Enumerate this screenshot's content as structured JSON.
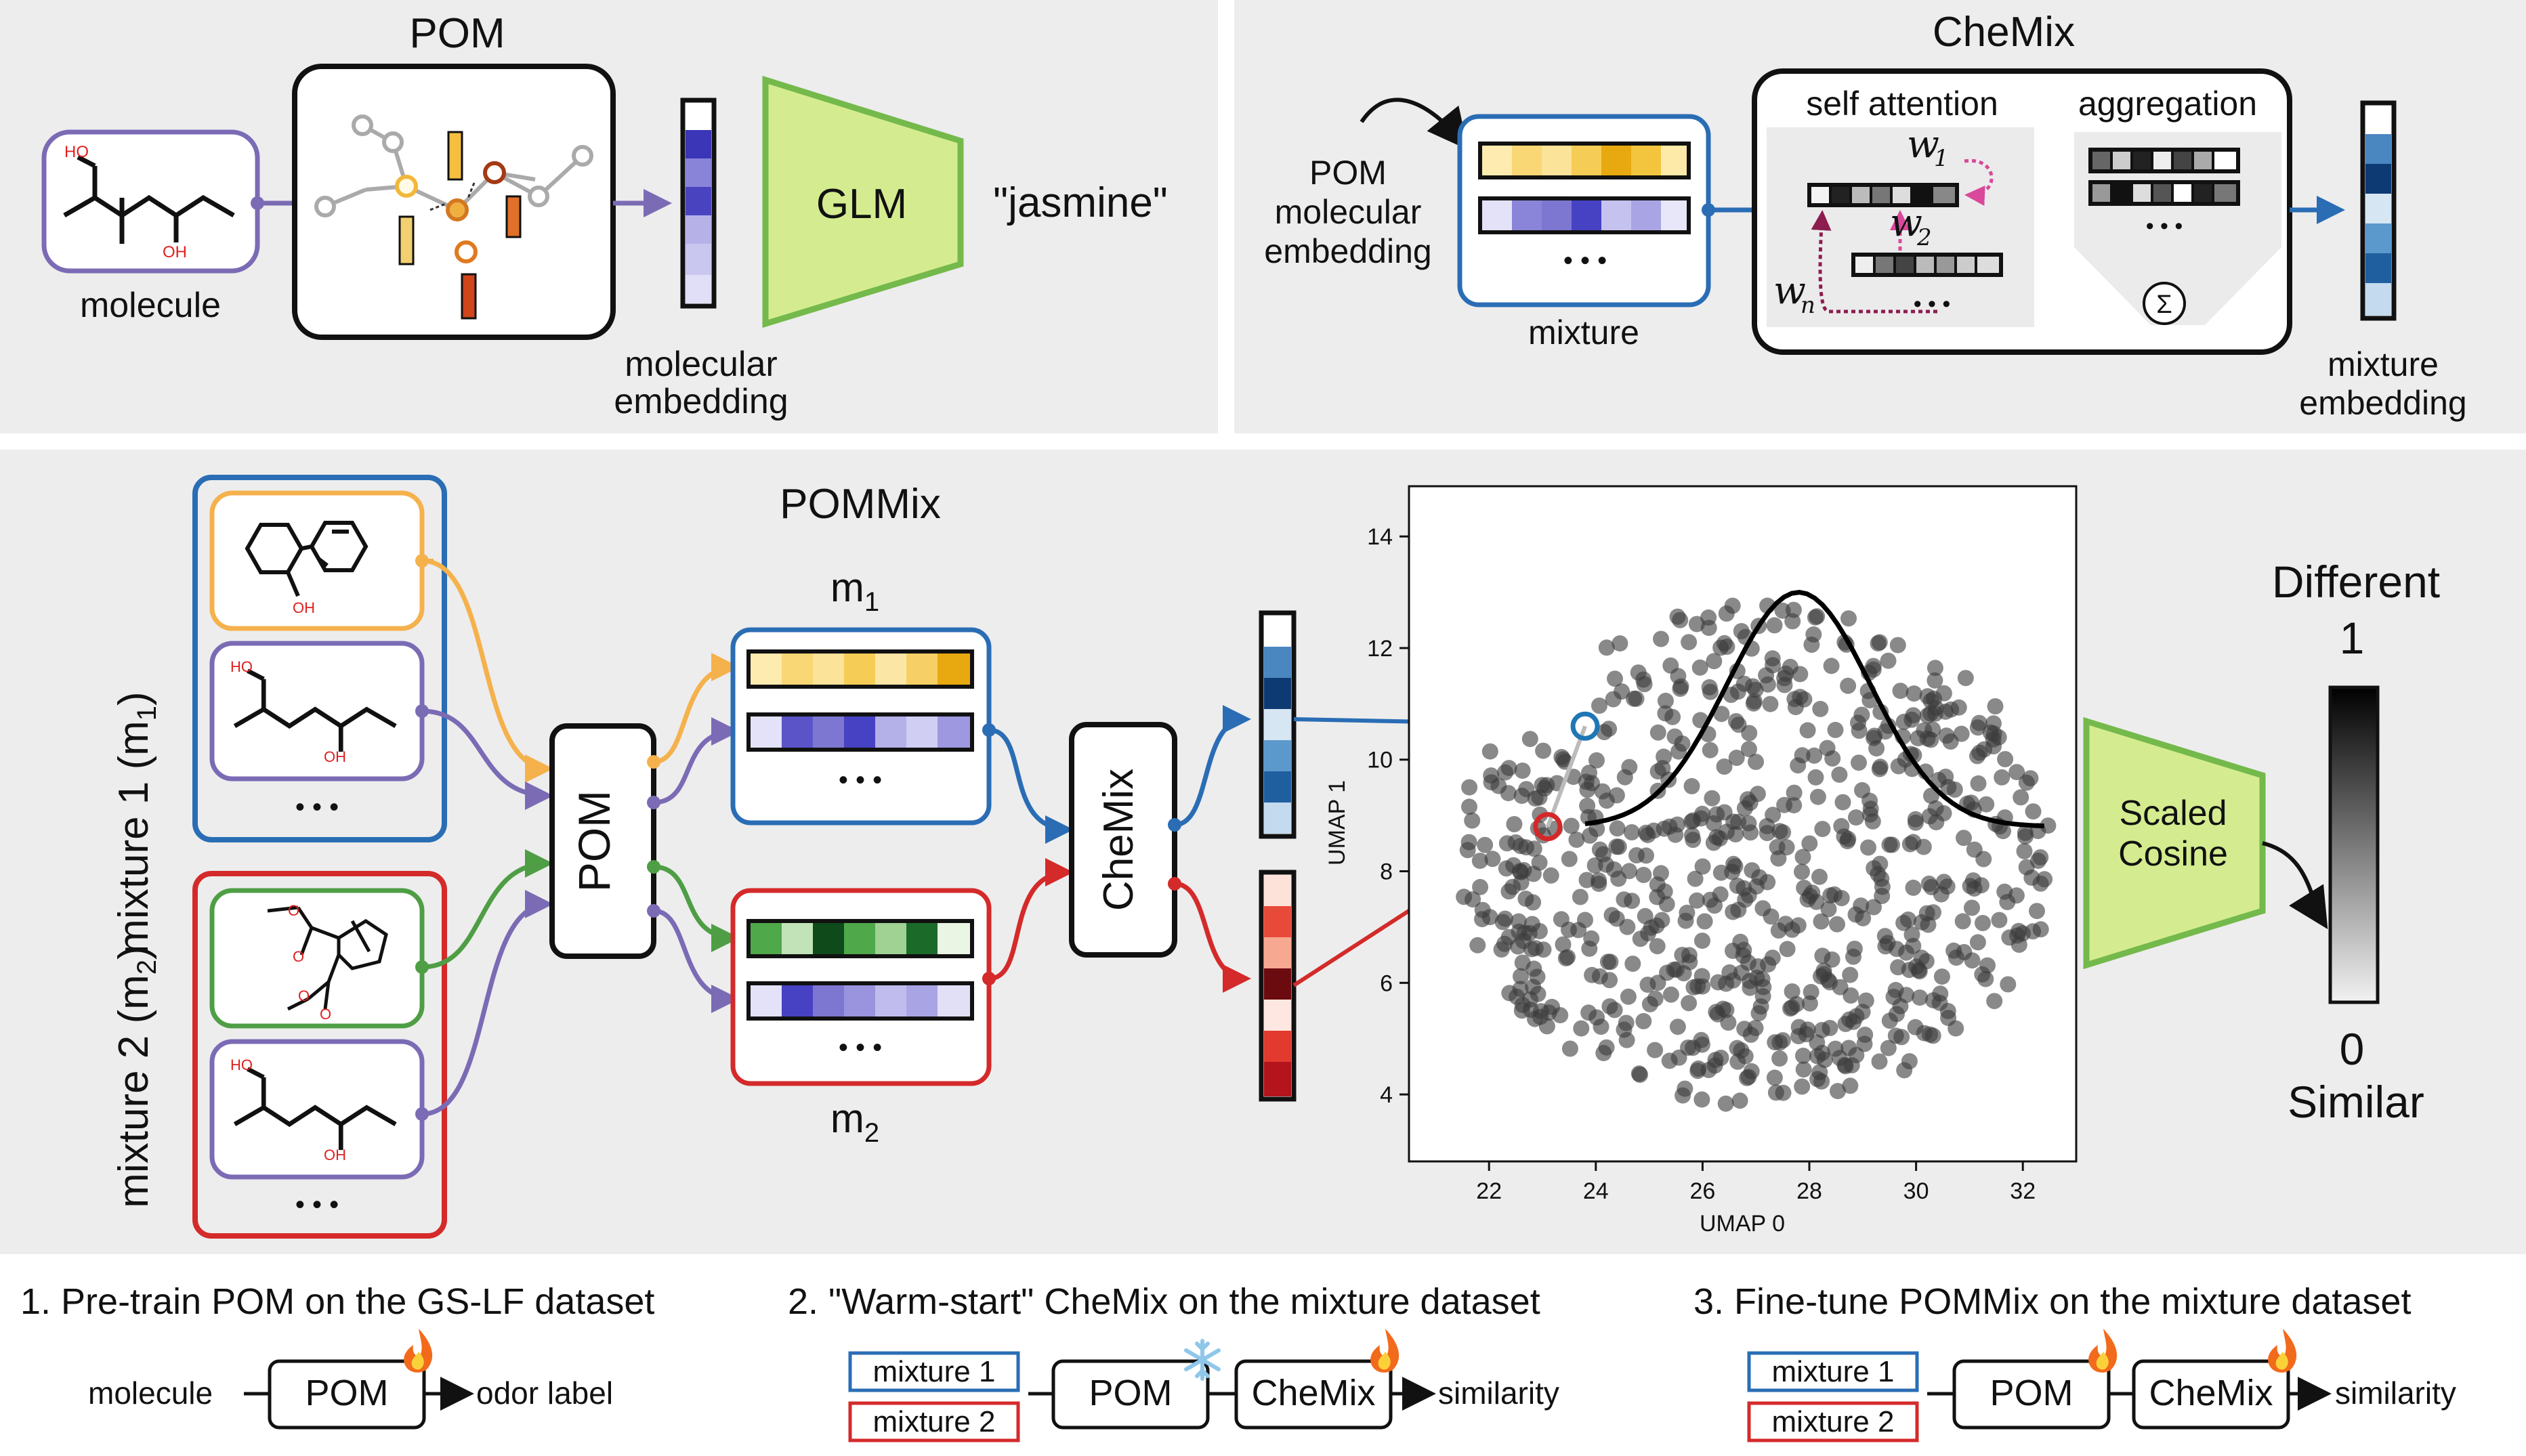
{
  "pom_panel": {
    "title": "POM",
    "molecule_label": "molecule",
    "embedding_label_1": "molecular",
    "embedding_label_2": "embedding",
    "glm_label": "GLM",
    "output_text": "\"jasmine\"",
    "atom_labels": {
      "ho": "HO",
      "oh": "OH"
    }
  },
  "chemix_panel": {
    "title": "CheMix",
    "input_label_1": "POM",
    "input_label_2": "molecular",
    "input_label_3": "embedding",
    "mixture_label": "mixture",
    "self_attention_label": "self attention",
    "aggregation_label": "aggregation",
    "w1": "w",
    "w1_sub": "1",
    "w2": "w",
    "w2_sub": "2",
    "wn": "w",
    "wn_sub": "n",
    "sum_symbol": "Σ",
    "output_label_1": "mixture",
    "output_label_2": "embedding",
    "ellipsis": "• • •"
  },
  "pommix_panel": {
    "title": "POMMix",
    "mixture1_label": "mixture 1 (m",
    "mixture1_sub": "1",
    "mixture2_label": "mixture 2 (m",
    "mixture2_sub": "2",
    "close_paren": ")",
    "m1_label": "m",
    "m1_sub": "1",
    "m2_label": "m",
    "m2_sub": "2",
    "pom_label": "POM",
    "chemix_label": "CheMix",
    "scaled_cosine_1": "Scaled",
    "scaled_cosine_2": "Cosine",
    "different_label": "Different",
    "one_label": "1",
    "zero_label": "0",
    "similar_label": "Similar",
    "ellipsis": "• • •",
    "atom_labels": {
      "ho": "HO",
      "oh": "OH",
      "o": "O"
    }
  },
  "chart_data": {
    "type": "scatter",
    "xlabel": "UMAP 0",
    "ylabel": "UMAP 1",
    "xlim": [
      20.5,
      33.0
    ],
    "ylim": [
      2.8,
      14.9
    ],
    "x_ticks": [
      22,
      24,
      26,
      28,
      30,
      32
    ],
    "y_ticks": [
      4,
      6,
      8,
      10,
      12,
      14
    ],
    "point_color": "#3a3a3a",
    "curve_color": "#000000",
    "highlight_points": [
      {
        "x": 23.8,
        "y": 10.6,
        "color": "#1f77b4"
      },
      {
        "x": 23.1,
        "y": 8.8,
        "color": "#d62728"
      }
    ]
  },
  "steps": {
    "step1_title": "1. Pre-train POM on the GS-LF dataset",
    "step1_molecule": "molecule",
    "step1_pom": "POM",
    "step1_output": "odor label",
    "step2_title": "2. \"Warm-start\" CheMix on the mixture dataset",
    "step2_mixture1": "mixture 1",
    "step2_mixture2": "mixture 2",
    "step2_pom": "POM",
    "step2_chemix": "CheMix",
    "step2_output": "similarity",
    "step3_title": "3. Fine-tune POMMix on the mixture dataset",
    "step3_mixture1": "mixture 1",
    "step3_mixture2": "mixture 2",
    "step3_pom": "POM",
    "step3_chemix": "CheMix",
    "step3_output": "similarity"
  },
  "colors": {
    "panel_bg": "#ededed",
    "blue": "#2a6db5",
    "red": "#d42a2a",
    "orange": "#f5b14c",
    "purple": "#7b6bb5",
    "green": "#4f9e45",
    "glm_fill": "#d4ec8f",
    "glm_stroke": "#74b94b",
    "attention_pink": "#d9489a",
    "attention_dark": "#8c1d4e"
  }
}
